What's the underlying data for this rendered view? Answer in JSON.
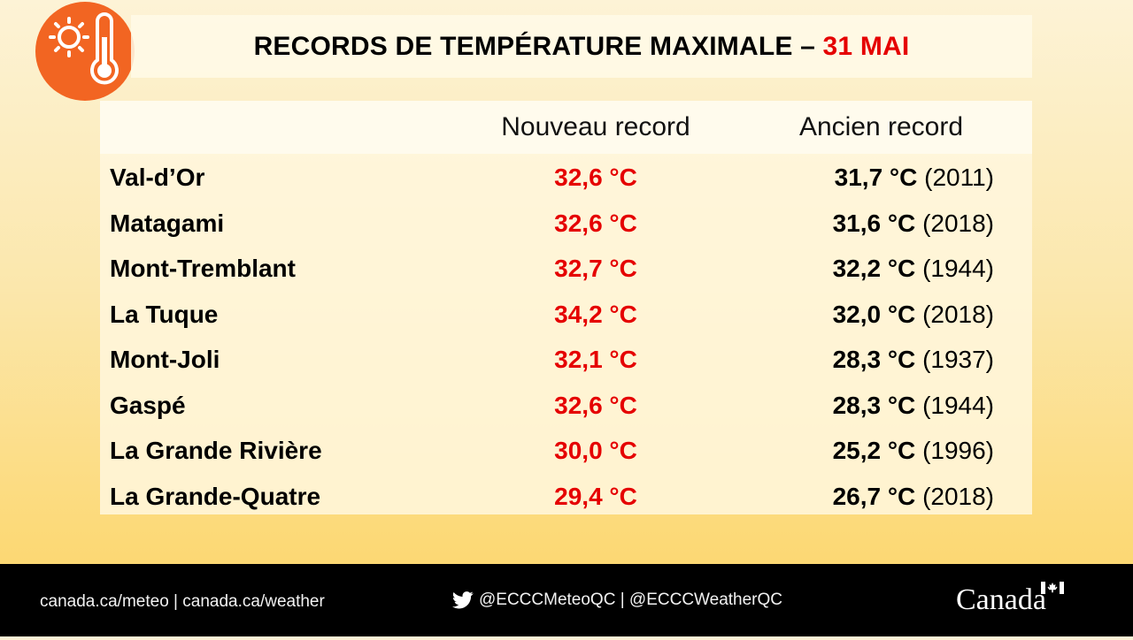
{
  "header": {
    "title_main": "RECORDS DE TEMPÉRATURE MAXIMALE – ",
    "title_date": "31 MAI",
    "logo_icon": "sun-thermometer-icon",
    "colors": {
      "accent": "#e50000",
      "logo_circle": "#f26522"
    }
  },
  "table": {
    "columns": {
      "station": "",
      "new_record": "Nouveau record",
      "old_record": "Ancien record"
    },
    "rows": [
      {
        "station": "Val-d’Or",
        "new_record": "32,6 °C",
        "old_value": "31,7 °C",
        "old_year": "(2011)"
      },
      {
        "station": "Matagami",
        "new_record": "32,6 °C",
        "old_value": "31,6 °C",
        "old_year": "(2018)"
      },
      {
        "station": "Mont-Tremblant",
        "new_record": "32,7 °C",
        "old_value": "32,2 °C",
        "old_year": "(1944)"
      },
      {
        "station": "La Tuque",
        "new_record": "34,2 °C",
        "old_value": "32,0 °C",
        "old_year": "(2018)"
      },
      {
        "station": "Mont-Joli",
        "new_record": "32,1 °C",
        "old_value": "28,3 °C",
        "old_year": "(1937)"
      },
      {
        "station": "Gaspé",
        "new_record": "32,6 °C",
        "old_value": "28,3 °C",
        "old_year": "(1944)"
      },
      {
        "station": "La Grande Rivière",
        "new_record": "30,0 °C",
        "old_value": "25,2 °C",
        "old_year": "(1996)"
      },
      {
        "station": "La Grande-Quatre",
        "new_record": "29,4 °C",
        "old_value": "26,7 °C",
        "old_year": "(2018)"
      }
    ]
  },
  "footer": {
    "websites": "canada.ca/meteo | canada.ca/weather",
    "twitter_icon": "twitter-bird-icon",
    "twitter_handles": "@ECCCMeteoQC | @ECCCWeatherQC",
    "wordmark": "Canada",
    "wordmark_icon": "canada-flag-icon"
  }
}
